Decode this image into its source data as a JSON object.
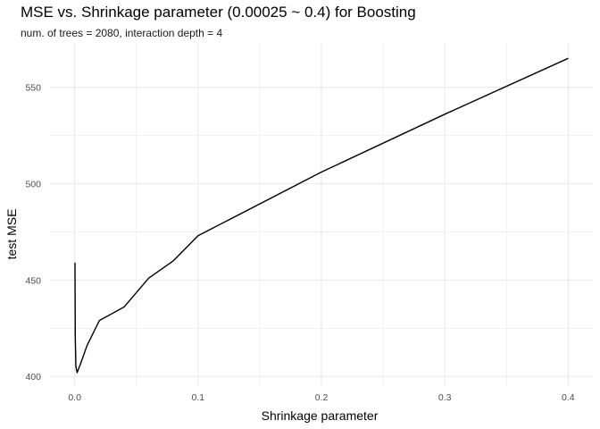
{
  "chart_data": {
    "type": "line",
    "title": "MSE vs. Shrinkage parameter (0.00025 ~ 0.4) for Boosting",
    "subtitle": "num. of trees = 2080, interaction depth = 4",
    "xlabel": "Shrinkage parameter",
    "ylabel": "test MSE",
    "xlim": [
      -0.02,
      0.42
    ],
    "ylim": [
      395,
      573
    ],
    "x_ticks": [
      0.0,
      0.1,
      0.2,
      0.3,
      0.4
    ],
    "x_tick_labels": [
      "0.0",
      "0.1",
      "0.2",
      "0.3",
      "0.4"
    ],
    "x_minor_ticks": [
      0.05,
      0.15,
      0.25,
      0.35
    ],
    "y_ticks": [
      400,
      450,
      500,
      550
    ],
    "y_tick_labels": [
      "400",
      "450",
      "500",
      "550"
    ],
    "y_minor_ticks": [
      425,
      475,
      525
    ],
    "grid": true,
    "line_color": "#000000",
    "grid_color": "#ebebeb",
    "series": [
      {
        "x": [
          0.00025,
          0.0005,
          0.001,
          0.002,
          0.005,
          0.01,
          0.02,
          0.04,
          0.06,
          0.08,
          0.1,
          0.2,
          0.3,
          0.4
        ],
        "y": [
          459,
          420,
          405,
          402,
          407,
          416,
          429,
          436,
          451,
          460,
          473,
          506,
          536,
          565
        ]
      }
    ]
  }
}
